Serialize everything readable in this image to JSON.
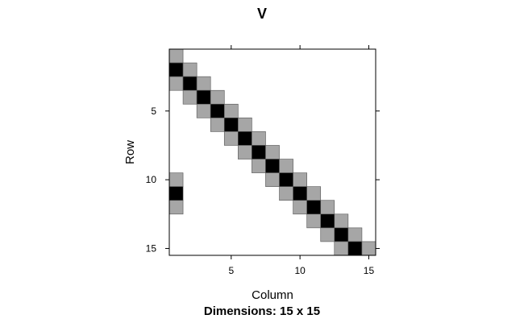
{
  "chart_data": {
    "type": "heatmap",
    "title": "V",
    "xlabel": "Column",
    "ylabel": "Row",
    "subtitle": "Dimensions: 15 x 15",
    "nrow": 15,
    "ncol": 15,
    "xticks": [
      5,
      10,
      15
    ],
    "yticks": [
      5,
      10,
      15
    ],
    "xlim": [
      0.5,
      15.5
    ],
    "ylim": [
      0.5,
      15.5
    ],
    "colors": {
      "dark": "#000000",
      "light": "#a6a6a6",
      "background": "#ffffff",
      "border": "#000000"
    },
    "cells": [
      {
        "row": 1,
        "col": 1,
        "level": "light"
      },
      {
        "row": 2,
        "col": 1,
        "level": "dark"
      },
      {
        "row": 2,
        "col": 2,
        "level": "light"
      },
      {
        "row": 3,
        "col": 1,
        "level": "light"
      },
      {
        "row": 3,
        "col": 2,
        "level": "dark"
      },
      {
        "row": 3,
        "col": 3,
        "level": "light"
      },
      {
        "row": 4,
        "col": 2,
        "level": "light"
      },
      {
        "row": 4,
        "col": 3,
        "level": "dark"
      },
      {
        "row": 4,
        "col": 4,
        "level": "light"
      },
      {
        "row": 5,
        "col": 3,
        "level": "light"
      },
      {
        "row": 5,
        "col": 4,
        "level": "dark"
      },
      {
        "row": 5,
        "col": 5,
        "level": "light"
      },
      {
        "row": 6,
        "col": 4,
        "level": "light"
      },
      {
        "row": 6,
        "col": 5,
        "level": "dark"
      },
      {
        "row": 6,
        "col": 6,
        "level": "light"
      },
      {
        "row": 7,
        "col": 5,
        "level": "light"
      },
      {
        "row": 7,
        "col": 6,
        "level": "dark"
      },
      {
        "row": 7,
        "col": 7,
        "level": "light"
      },
      {
        "row": 8,
        "col": 6,
        "level": "light"
      },
      {
        "row": 8,
        "col": 7,
        "level": "dark"
      },
      {
        "row": 8,
        "col": 8,
        "level": "light"
      },
      {
        "row": 9,
        "col": 7,
        "level": "light"
      },
      {
        "row": 9,
        "col": 8,
        "level": "dark"
      },
      {
        "row": 9,
        "col": 9,
        "level": "light"
      },
      {
        "row": 10,
        "col": 1,
        "level": "light"
      },
      {
        "row": 10,
        "col": 8,
        "level": "light"
      },
      {
        "row": 10,
        "col": 9,
        "level": "dark"
      },
      {
        "row": 10,
        "col": 10,
        "level": "light"
      },
      {
        "row": 11,
        "col": 1,
        "level": "dark"
      },
      {
        "row": 11,
        "col": 9,
        "level": "light"
      },
      {
        "row": 11,
        "col": 10,
        "level": "dark"
      },
      {
        "row": 11,
        "col": 11,
        "level": "light"
      },
      {
        "row": 12,
        "col": 1,
        "level": "light"
      },
      {
        "row": 12,
        "col": 10,
        "level": "light"
      },
      {
        "row": 12,
        "col": 11,
        "level": "dark"
      },
      {
        "row": 12,
        "col": 12,
        "level": "light"
      },
      {
        "row": 13,
        "col": 11,
        "level": "light"
      },
      {
        "row": 13,
        "col": 12,
        "level": "dark"
      },
      {
        "row": 13,
        "col": 13,
        "level": "light"
      },
      {
        "row": 14,
        "col": 12,
        "level": "light"
      },
      {
        "row": 14,
        "col": 13,
        "level": "dark"
      },
      {
        "row": 14,
        "col": 14,
        "level": "light"
      },
      {
        "row": 15,
        "col": 13,
        "level": "light"
      },
      {
        "row": 15,
        "col": 14,
        "level": "dark"
      },
      {
        "row": 15,
        "col": 15,
        "level": "light"
      }
    ]
  }
}
